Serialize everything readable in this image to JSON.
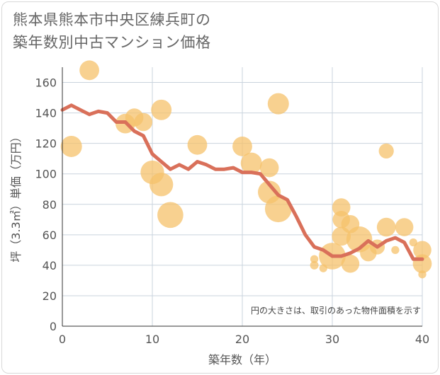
{
  "chart_data": {
    "type": "scatter",
    "title_lines": [
      "熊本県熊本市中央区練兵町の",
      "築年数別中古マンション価格"
    ],
    "xlabel": "築年数（年）",
    "ylabel": "坪（3.3㎡）単価（万円）",
    "xlim": [
      0,
      40
    ],
    "ylim": [
      0,
      170
    ],
    "x_ticks": [
      0,
      10,
      20,
      30,
      40
    ],
    "y_ticks": [
      0,
      20,
      40,
      60,
      80,
      100,
      120,
      140,
      160
    ],
    "grid": true,
    "annotation": "円の大きさは、取引のあった物件面積を示す",
    "colors": {
      "bubble": "#f5c26b",
      "line": "#d9705a",
      "grid": "#c9d3dd",
      "axis": "#333333"
    },
    "points": [
      {
        "x": 1,
        "y": 118,
        "s": 1.0
      },
      {
        "x": 3,
        "y": 168,
        "s": 0.9
      },
      {
        "x": 7,
        "y": 133,
        "s": 0.9
      },
      {
        "x": 8,
        "y": 137,
        "s": 0.8
      },
      {
        "x": 9,
        "y": 134,
        "s": 0.8
      },
      {
        "x": 11,
        "y": 142,
        "s": 0.95
      },
      {
        "x": 10,
        "y": 101,
        "s": 1.15
      },
      {
        "x": 11,
        "y": 93,
        "s": 1.15
      },
      {
        "x": 12,
        "y": 73,
        "s": 1.3
      },
      {
        "x": 15,
        "y": 119,
        "s": 0.9
      },
      {
        "x": 20,
        "y": 118,
        "s": 0.9
      },
      {
        "x": 21,
        "y": 107,
        "s": 1.0
      },
      {
        "x": 23,
        "y": 104,
        "s": 0.85
      },
      {
        "x": 23,
        "y": 88,
        "s": 1.1
      },
      {
        "x": 24,
        "y": 146,
        "s": 1.0
      },
      {
        "x": 24,
        "y": 77,
        "s": 1.35
      },
      {
        "x": 28,
        "y": 40,
        "s": 0.18
      },
      {
        "x": 28,
        "y": 44,
        "s": 0.15
      },
      {
        "x": 29,
        "y": 38,
        "s": 0.15
      },
      {
        "x": 30,
        "y": 46,
        "s": 1.35
      },
      {
        "x": 31,
        "y": 78,
        "s": 0.8
      },
      {
        "x": 31,
        "y": 70,
        "s": 0.75
      },
      {
        "x": 31,
        "y": 59,
        "s": 0.85
      },
      {
        "x": 32,
        "y": 67,
        "s": 0.8
      },
      {
        "x": 32,
        "y": 41,
        "s": 0.8
      },
      {
        "x": 33,
        "y": 57,
        "s": 1.3
      },
      {
        "x": 34,
        "y": 48,
        "s": 0.7
      },
      {
        "x": 35,
        "y": 52,
        "s": 0.6
      },
      {
        "x": 36,
        "y": 65,
        "s": 0.85
      },
      {
        "x": 36,
        "y": 115,
        "s": 0.6
      },
      {
        "x": 37,
        "y": 50,
        "s": 0.15
      },
      {
        "x": 38,
        "y": 65,
        "s": 0.8
      },
      {
        "x": 39,
        "y": 55,
        "s": 0.15
      },
      {
        "x": 40,
        "y": 50,
        "s": 0.8
      },
      {
        "x": 40,
        "y": 41,
        "s": 0.85
      },
      {
        "x": 40,
        "y": 34,
        "s": 0.15
      }
    ],
    "trend": {
      "x": [
        0,
        1,
        2,
        3,
        4,
        5,
        6,
        7,
        8,
        9,
        10,
        11,
        12,
        13,
        14,
        15,
        16,
        17,
        18,
        19,
        20,
        21,
        22,
        23,
        24,
        25,
        26,
        27,
        28,
        29,
        30,
        31,
        32,
        33,
        34,
        35,
        36,
        37,
        38,
        39,
        40
      ],
      "y": [
        142,
        145,
        142,
        139,
        141,
        140,
        134,
        134,
        128,
        125,
        113,
        108,
        103,
        106,
        103,
        108,
        106,
        103,
        103,
        104,
        101,
        101,
        100,
        93,
        86,
        83,
        72,
        60,
        52,
        50,
        46,
        46,
        48,
        51,
        56,
        52,
        56,
        58,
        55,
        44,
        44
      ]
    }
  }
}
